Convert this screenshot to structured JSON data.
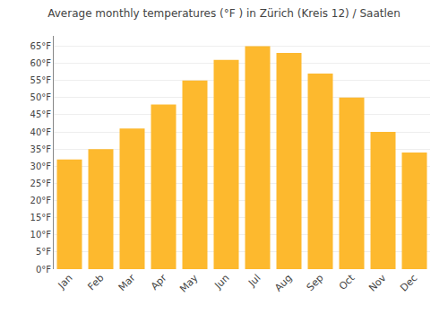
{
  "chart_data": {
    "type": "bar",
    "title": "Average monthly temperatures (°F ) in Zürich (Kreis 12) / Saatlen",
    "categories": [
      "Jan",
      "Feb",
      "Mar",
      "Apr",
      "May",
      "Jun",
      "Jul",
      "Aug",
      "Sep",
      "Oct",
      "Nov",
      "Dec"
    ],
    "values": [
      32,
      35,
      41,
      48,
      55,
      61,
      65,
      63,
      57,
      50,
      40,
      34
    ],
    "color": "#FDB92E",
    "ylim": [
      0,
      68
    ],
    "yticks": [
      {
        "value": 0,
        "label": "0°F"
      },
      {
        "value": 5,
        "label": "5°F"
      },
      {
        "value": 10,
        "label": "10°F"
      },
      {
        "value": 15,
        "label": "15°F"
      },
      {
        "value": 20,
        "label": "20°F"
      },
      {
        "value": 25,
        "label": "25°F"
      },
      {
        "value": 30,
        "label": "30°F"
      },
      {
        "value": 35,
        "label": "35°F"
      },
      {
        "value": 40,
        "label": "40°F"
      },
      {
        "value": 45,
        "label": "45°F"
      },
      {
        "value": 50,
        "label": "50°F"
      },
      {
        "value": 55,
        "label": "55°F"
      },
      {
        "value": 60,
        "label": "60°F"
      },
      {
        "value": 65,
        "label": "65°F"
      }
    ],
    "grid": true
  }
}
